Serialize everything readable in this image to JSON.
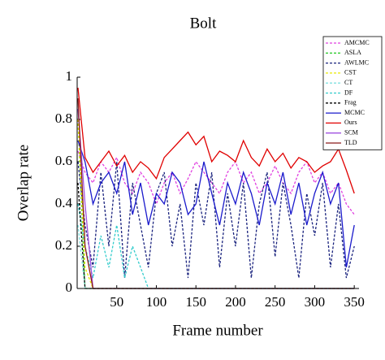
{
  "chart_data": {
    "type": "line",
    "title": "Bolt",
    "x_label": "Frame number",
    "y_label": "Overlap rate",
    "x": [
      1,
      10,
      20,
      30,
      40,
      50,
      60,
      70,
      80,
      90,
      100,
      110,
      120,
      130,
      140,
      150,
      160,
      170,
      180,
      190,
      200,
      210,
      220,
      230,
      240,
      250,
      260,
      270,
      280,
      290,
      300,
      310,
      320,
      330,
      340,
      350
    ],
    "xlim": [
      0,
      356
    ],
    "xticks": [
      50,
      100,
      150,
      200,
      250,
      300,
      350
    ],
    "ylim": [
      0,
      1
    ],
    "yticks": [
      0,
      0.2,
      0.4,
      0.6,
      0.8,
      1
    ],
    "legend": "top-right",
    "series": [
      {
        "name": "AMCMC",
        "color": "#e040e0",
        "dashed": true,
        "values": [
          0.65,
          0.55,
          0.5,
          0.6,
          0.55,
          0.62,
          0.5,
          0.45,
          0.55,
          0.5,
          0.4,
          0.5,
          0.55,
          0.45,
          0.52,
          0.6,
          0.55,
          0.5,
          0.45,
          0.55,
          0.6,
          0.5,
          0.55,
          0.45,
          0.5,
          0.58,
          0.5,
          0.45,
          0.55,
          0.6,
          0.5,
          0.55,
          0.45,
          0.5,
          0.4,
          0.35
        ]
      },
      {
        "name": "ASLA",
        "color": "#33cc33",
        "dashed": true,
        "values": [
          0.8,
          0,
          0,
          0,
          0,
          0,
          0,
          0,
          0,
          0,
          0,
          0,
          0,
          0,
          0,
          0,
          0,
          0,
          0,
          0,
          0,
          0,
          0,
          0,
          0,
          0,
          0,
          0,
          0,
          0,
          0,
          0,
          0,
          0,
          0,
          0
        ]
      },
      {
        "name": "AWLMC",
        "color": "#1a237e",
        "dashed": true,
        "values": [
          0.6,
          0.3,
          0.1,
          0.55,
          0.2,
          0.6,
          0.05,
          0.5,
          0.3,
          0.1,
          0.45,
          0.55,
          0.2,
          0.4,
          0.05,
          0.5,
          0.3,
          0.55,
          0.1,
          0.45,
          0.2,
          0.5,
          0.05,
          0.4,
          0.55,
          0.15,
          0.5,
          0.3,
          0.05,
          0.45,
          0.25,
          0.5,
          0.1,
          0.4,
          0.05,
          0.2
        ]
      },
      {
        "name": "CST",
        "color": "#e8e800",
        "dashed": true,
        "values": [
          0.8,
          0.1,
          0,
          0,
          0,
          0,
          0,
          0,
          0,
          0,
          0,
          0,
          0,
          0,
          0,
          0,
          0,
          0,
          0,
          0,
          0,
          0,
          0,
          0,
          0,
          0,
          0,
          0,
          0,
          0,
          0,
          0,
          0,
          0,
          0,
          0
        ]
      },
      {
        "name": "CT",
        "color": "#80e0e0",
        "dashed": true,
        "values": [
          0.3,
          0,
          0,
          0,
          0,
          0,
          0,
          0,
          0,
          0,
          0,
          0,
          0,
          0,
          0,
          0,
          0,
          0,
          0,
          0,
          0,
          0,
          0,
          0,
          0,
          0,
          0,
          0,
          0,
          0,
          0,
          0,
          0,
          0,
          0,
          0
        ]
      },
      {
        "name": "DF",
        "color": "#33cccc",
        "dashed": true,
        "values": [
          0.4,
          0.2,
          0.05,
          0.25,
          0.1,
          0.3,
          0.05,
          0.2,
          0.1,
          0,
          0,
          0,
          0,
          0,
          0,
          0,
          0,
          0,
          0,
          0,
          0,
          0,
          0,
          0,
          0,
          0,
          0,
          0,
          0,
          0,
          0,
          0,
          0,
          0,
          0,
          0
        ]
      },
      {
        "name": "Frag",
        "color": "#000000",
        "dashed": true,
        "values": [
          0.5,
          0,
          0,
          0,
          0,
          0,
          0,
          0,
          0,
          0,
          0,
          0,
          0,
          0,
          0,
          0,
          0,
          0,
          0,
          0,
          0,
          0,
          0,
          0,
          0,
          0,
          0,
          0,
          0,
          0,
          0,
          0,
          0,
          0,
          0,
          0
        ]
      },
      {
        "name": "MCMC",
        "color": "#1a1acc",
        "dashed": false,
        "values": [
          0.7,
          0.6,
          0.4,
          0.5,
          0.55,
          0.45,
          0.6,
          0.35,
          0.5,
          0.3,
          0.45,
          0.4,
          0.55,
          0.5,
          0.35,
          0.4,
          0.6,
          0.45,
          0.3,
          0.5,
          0.4,
          0.55,
          0.45,
          0.3,
          0.5,
          0.4,
          0.55,
          0.35,
          0.5,
          0.3,
          0.45,
          0.55,
          0.4,
          0.5,
          0.1,
          0.3
        ]
      },
      {
        "name": "Ours",
        "color": "#e00000",
        "dashed": false,
        "values": [
          0.95,
          0.62,
          0.55,
          0.6,
          0.65,
          0.58,
          0.63,
          0.55,
          0.6,
          0.57,
          0.52,
          0.62,
          0.66,
          0.7,
          0.74,
          0.68,
          0.72,
          0.6,
          0.65,
          0.63,
          0.6,
          0.7,
          0.62,
          0.58,
          0.66,
          0.6,
          0.64,
          0.57,
          0.62,
          0.6,
          0.55,
          0.58,
          0.6,
          0.66,
          0.56,
          0.45
        ]
      },
      {
        "name": "SCM",
        "color": "#a050e0",
        "dashed": false,
        "values": [
          0.85,
          0.4,
          0,
          0,
          0,
          0,
          0,
          0,
          0,
          0,
          0,
          0,
          0,
          0,
          0,
          0,
          0,
          0,
          0,
          0,
          0,
          0,
          0,
          0,
          0,
          0,
          0,
          0,
          0,
          0,
          0,
          0,
          0,
          0,
          0,
          0
        ]
      },
      {
        "name": "TLD",
        "color": "#8b1a1a",
        "dashed": false,
        "values": [
          0.9,
          0.2,
          0,
          0,
          0,
          0,
          0,
          0,
          0,
          0,
          0,
          0,
          0,
          0,
          0,
          0,
          0,
          0,
          0,
          0,
          0,
          0,
          0,
          0,
          0,
          0,
          0,
          0,
          0,
          0,
          0,
          0,
          0,
          0,
          0,
          0
        ]
      }
    ]
  }
}
